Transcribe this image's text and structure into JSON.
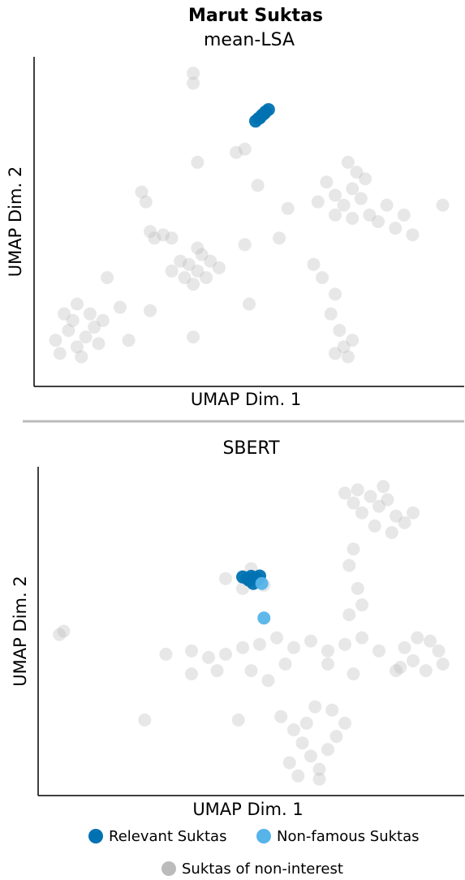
{
  "title": "Marut Suktas",
  "chart_data": [
    {
      "type": "scatter",
      "subtitle": "mean-LSA",
      "xlabel": "UMAP Dim. 1",
      "ylabel": "UMAP Dim. 2",
      "xlim": [
        0,
        100
      ],
      "ylim": [
        0,
        100
      ],
      "series": [
        {
          "color": "#bbbbbb",
          "x": [
            5,
            8,
            10,
            12,
            9,
            14,
            6,
            11,
            15,
            13,
            7,
            16,
            10,
            36,
            38,
            40,
            37,
            34,
            41,
            39,
            35,
            32,
            43,
            38,
            37,
            37,
            47,
            49,
            38,
            25,
            26,
            28,
            30,
            32,
            27,
            68,
            70,
            72,
            74,
            75,
            73,
            76,
            78,
            80,
            82,
            84,
            86,
            70,
            66,
            77,
            74,
            88,
            95,
            69,
            71,
            72,
            73,
            70,
            74,
            70,
            67,
            65,
            20,
            27,
            37,
            22,
            17,
            49,
            50,
            59,
            57,
            52
          ],
          "values": [
            14,
            17,
            12,
            15,
            20,
            18,
            10,
            9,
            13,
            22,
            22,
            20,
            25,
            37,
            35,
            33,
            31,
            38,
            38,
            40,
            33,
            35,
            36,
            42,
            95,
            92,
            71,
            72,
            68,
            59,
            56,
            45,
            46,
            45,
            47,
            62,
            58,
            55,
            60,
            65,
            68,
            57,
            52,
            50,
            55,
            48,
            52,
            52,
            56,
            63,
            51,
            46,
            55,
            22,
            17,
            12,
            9,
            10,
            14,
            28,
            33,
            37,
            24,
            23,
            15,
            14,
            33,
            43,
            25,
            54,
            45,
            61
          ]
        },
        {
          "color": "#0072b2",
          "x": [
            51.5,
            52.2,
            53,
            53.8,
            54.5,
            52.5,
            53.5
          ],
          "values": [
            80.5,
            81.3,
            82.3,
            83.3,
            84,
            81.5,
            82.8
          ]
        }
      ]
    },
    {
      "type": "scatter",
      "subtitle": "SBERT",
      "xlabel": "UMAP Dim. 1",
      "ylabel": "UMAP Dim. 2",
      "xlim": [
        0,
        100
      ],
      "ylim": [
        0,
        100
      ],
      "series": [
        {
          "name": "Relevant Suktas",
          "color": "#0072b2",
          "x": [
            48,
            49,
            50,
            51,
            52,
            49.5,
            51.5,
            50.5
          ],
          "values": [
            66.5,
            66,
            66.7,
            66.3,
            66.8,
            65.5,
            65.8,
            64.5
          ]
        },
        {
          "name": "Non-famous Suktas",
          "color": "#56b4e9",
          "x": [
            53,
            52.5
          ],
          "values": [
            54,
            64.5
          ]
        },
        {
          "name": "Suktas of non-interest",
          "color": "#bbbbbb",
          "x": [
            72,
            75,
            78,
            80,
            82,
            84,
            86,
            83,
            79,
            76,
            74,
            88,
            81,
            86,
            89,
            92,
            94,
            95,
            91,
            88,
            85,
            57,
            60,
            62,
            64,
            66,
            68,
            70,
            63,
            59,
            66,
            72,
            61,
            69,
            65,
            36,
            40,
            44,
            48,
            52,
            56,
            60,
            64,
            68,
            72,
            76,
            80,
            42,
            50,
            58,
            73,
            75,
            76,
            73,
            74,
            44,
            50,
            53,
            48,
            5,
            6,
            25,
            30,
            47,
            36,
            54,
            68,
            74,
            84
          ],
          "values": [
            92,
            93,
            91,
            88,
            90,
            85,
            83,
            80,
            82,
            86,
            89,
            86,
            94,
            45,
            48,
            47,
            44,
            40,
            38,
            41,
            39,
            24,
            20,
            16,
            12,
            8,
            14,
            18,
            22,
            10,
            5,
            22,
            6,
            26,
            27,
            44,
            42,
            43,
            45,
            46,
            48,
            45,
            47,
            44,
            46,
            48,
            44,
            38,
            38,
            40,
            70,
            63,
            58,
            55,
            75,
            66,
            69,
            64,
            63,
            49,
            50,
            23,
            43,
            23,
            37,
            35,
            40,
            37,
            38
          ]
        }
      ]
    }
  ]
}
